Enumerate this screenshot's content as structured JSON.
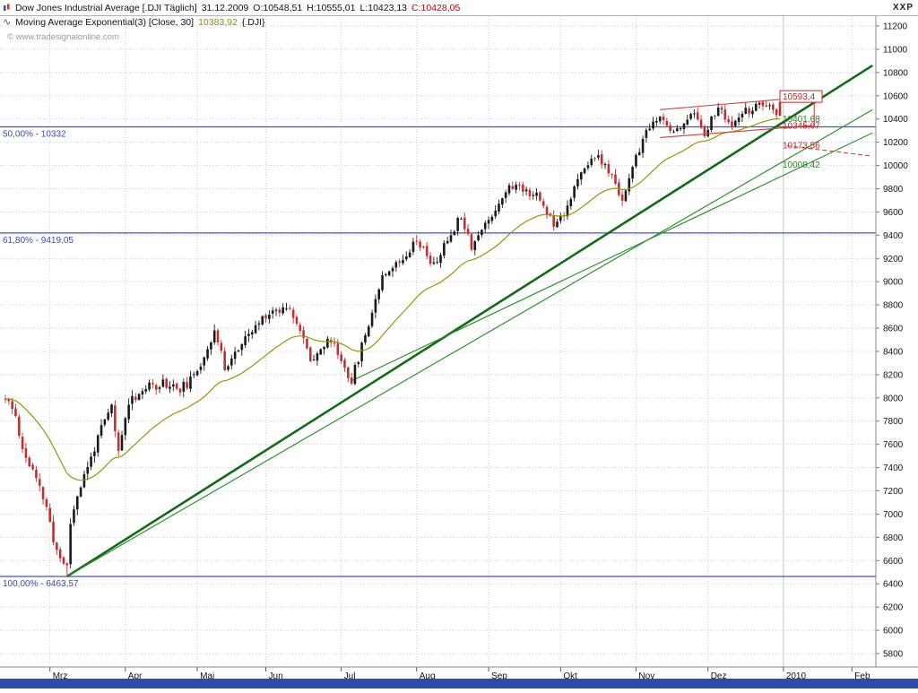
{
  "window": {
    "controls": "XXP"
  },
  "header": {
    "title": "Dow Jones Industrial Average [.DJI  Täglich]",
    "date": "31.12.2009",
    "open_label": "O:10548,51",
    "high_label": "H:10555,01",
    "low_label": "L:10423,13",
    "close_label": "C:10428,05",
    "close_color": "#cc0000"
  },
  "indicator": {
    "label": "Moving Average Exponential(3) [Close, 30]",
    "value": "10383,92",
    "suffix": "{.DJI}",
    "value_color": "#8f8f00"
  },
  "watermark": "© www.tradesignalonline.com",
  "bottom_bar_color": "#2b4da8",
  "chart_data": {
    "type": "candlestick",
    "symbol": ".DJI",
    "title": "Dow Jones Industrial Average",
    "timeframe": "Täglich",
    "last_candle": {
      "open": 10548.51,
      "high": 10555.01,
      "low": 10423.13,
      "close": 10428.05
    },
    "y_axis": {
      "min": 5800,
      "max": 11200,
      "step": 200,
      "labels": [
        "11200",
        "11000",
        "10800",
        "10600",
        "10400",
        "10200",
        "10000",
        "9800",
        "9600",
        "9400",
        "9200",
        "9000",
        "8800",
        "8600",
        "8400",
        "8200",
        "8000",
        "7800",
        "7600",
        "7400",
        "7200",
        "7000",
        "6800",
        "6600",
        "6400",
        "6200",
        "6000",
        "5800"
      ]
    },
    "x_axis": {
      "months": [
        {
          "label": "Mrz",
          "day": 13
        },
        {
          "label": "Apr",
          "day": 35
        },
        {
          "label": "Mai",
          "day": 56
        },
        {
          "label": "Jun",
          "day": 76
        },
        {
          "label": "Jul",
          "day": 98
        },
        {
          "label": "Aug",
          "day": 120
        },
        {
          "label": "Sep",
          "day": 141
        },
        {
          "label": "Okt",
          "day": 162
        },
        {
          "label": "Nov",
          "day": 184
        },
        {
          "label": "Dez",
          "day": 205
        },
        {
          "label": "2010",
          "day": 227
        },
        {
          "label": "Feb",
          "day": 247
        }
      ],
      "candle_days": 227,
      "total_days": 254
    },
    "anchors": [
      [
        0,
        7990
      ],
      [
        3,
        7850
      ],
      [
        5,
        7552
      ],
      [
        8,
        7365
      ],
      [
        12,
        7062
      ],
      [
        14,
        6763
      ],
      [
        16,
        6626
      ],
      [
        18,
        6547
      ],
      [
        19,
        6926
      ],
      [
        21,
        7170
      ],
      [
        24,
        7400
      ],
      [
        27,
        7660
      ],
      [
        31,
        7924
      ],
      [
        33,
        7522
      ],
      [
        36,
        7978
      ],
      [
        41,
        8083
      ],
      [
        46,
        8131
      ],
      [
        51,
        8076
      ],
      [
        55,
        8168
      ],
      [
        61,
        8574
      ],
      [
        64,
        8268
      ],
      [
        68,
        8422
      ],
      [
        76,
        8721
      ],
      [
        83,
        8799
      ],
      [
        89,
        8339
      ],
      [
        95,
        8504
      ],
      [
        101,
        8146
      ],
      [
        108,
        8848
      ],
      [
        110,
        9069
      ],
      [
        115,
        9171
      ],
      [
        120,
        9370
      ],
      [
        125,
        9135
      ],
      [
        133,
        9580
      ],
      [
        136,
        9310
      ],
      [
        143,
        9626
      ],
      [
        146,
        9791
      ],
      [
        149,
        9829
      ],
      [
        155,
        9742
      ],
      [
        160,
        9509
      ],
      [
        163,
        9600
      ],
      [
        167,
        9865
      ],
      [
        170,
        10015
      ],
      [
        172,
        10092
      ],
      [
        176,
        9949
      ],
      [
        180,
        9712
      ],
      [
        186,
        10226
      ],
      [
        190,
        10406
      ],
      [
        194,
        10318
      ],
      [
        197,
        10309
      ],
      [
        200,
        10471
      ],
      [
        204,
        10285
      ],
      [
        208,
        10501
      ],
      [
        212,
        10328
      ],
      [
        216,
        10466
      ],
      [
        221,
        10520
      ],
      [
        226,
        10428
      ]
    ],
    "low_anchor": {
      "day": 18,
      "low": 6466
    },
    "fib_levels": [
      {
        "label": "50,00% - 10332",
        "price": 10332
      },
      {
        "label": "61,80% - 9419,05",
        "price": 9419.05
      },
      {
        "label": "100,00% - 6463,57",
        "price": 6463.57
      }
    ],
    "trendlines": [
      {
        "name": "primary-uptrend",
        "from": [
          18,
          6463.57
        ],
        "to": [
          253,
          10860
        ],
        "color": "#156b15",
        "width": 2.6
      },
      {
        "name": "fan-line",
        "from": [
          18,
          6463.57
        ],
        "to": [
          253,
          10480
        ],
        "color": "#2f8f2f",
        "width": 1.2
      },
      {
        "name": "july-uptrend",
        "from": [
          101,
          8146
        ],
        "to": [
          253,
          10280
        ],
        "color": "#2f8f2f",
        "width": 1.2
      }
    ],
    "channel": {
      "color": "#cc4040",
      "top": {
        "from": [
          191,
          10480
        ],
        "to": [
          236,
          10593.4
        ]
      },
      "bottom": {
        "from": [
          191,
          10240
        ],
        "to": [
          236,
          10345.07
        ]
      }
    },
    "dashed_line": {
      "from": [
        228,
        10170
      ],
      "to": [
        253,
        10080
      ],
      "color": "#cc4040"
    },
    "price_labels": [
      {
        "text": "10593,4",
        "price": 10593.4,
        "color": "#cc2222",
        "boxed": true
      },
      {
        "text": "10401,68",
        "price": 10401.68,
        "color": "#2f7f2f",
        "boxed": false
      },
      {
        "text": "10345,07",
        "price": 10345.07,
        "color": "#cc2222",
        "boxed": false
      },
      {
        "text": "10173,56",
        "price": 10173.56,
        "color": "#cc2222",
        "boxed": false
      },
      {
        "text": "10008,42",
        "price": 10008.42,
        "color": "#2f7f2f",
        "boxed": false
      }
    ],
    "ema": {
      "period": 30,
      "color": "#96960a"
    },
    "candle_up_color": "#1a1a1a",
    "candle_down_color": "#c03030",
    "year_line": {
      "day": 227,
      "color": "#b5d6b5"
    },
    "grid_color": "#c9cddd",
    "fib_color": "#4554b4"
  }
}
